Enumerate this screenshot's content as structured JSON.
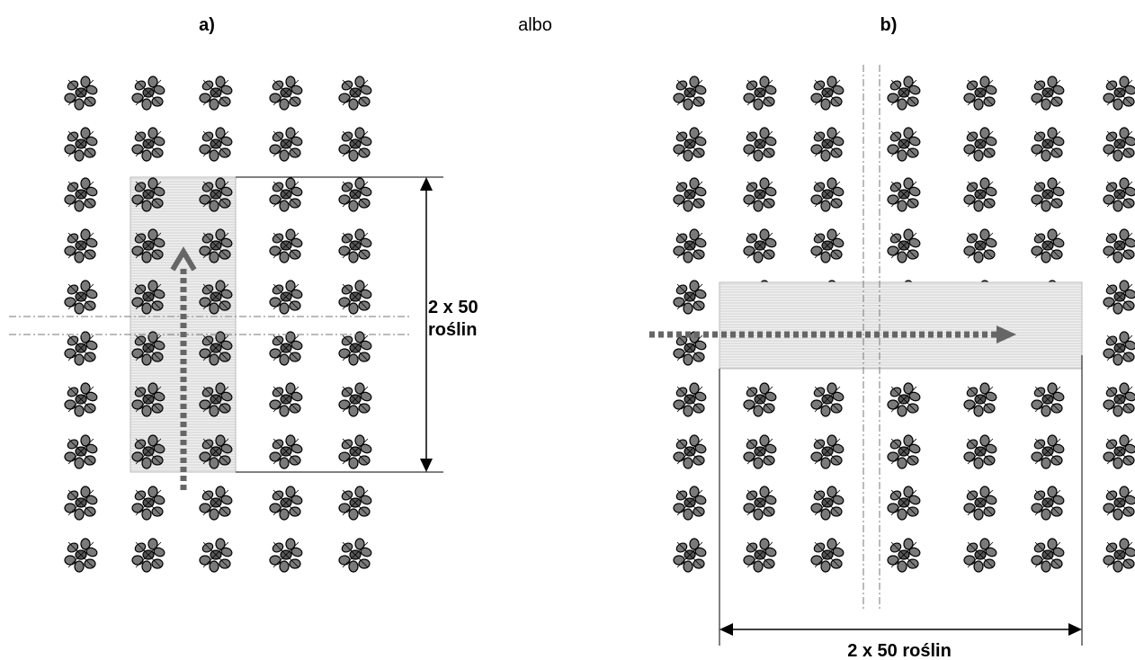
{
  "panel_a": {
    "label": "a)",
    "dimension": {
      "line1": "2 x 50",
      "line2": "roślin"
    }
  },
  "separator": "albo",
  "panel_b": {
    "label": "b)",
    "dimension": "2 x 50 roślin"
  }
}
